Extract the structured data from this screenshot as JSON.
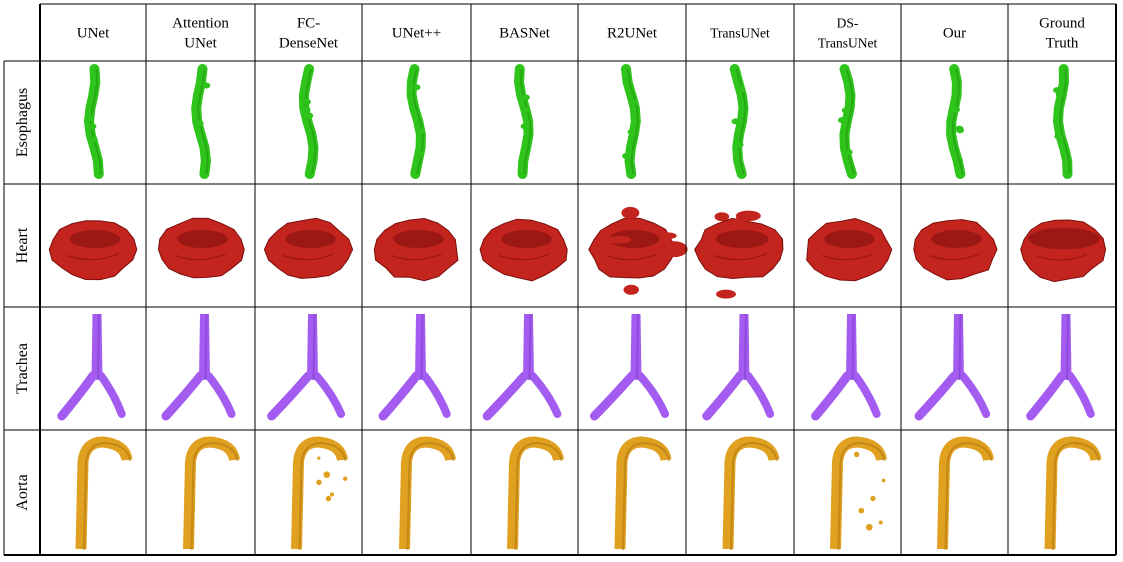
{
  "figure": {
    "columns": [
      [
        "UNet"
      ],
      [
        "Attention",
        "UNet"
      ],
      [
        "FC-",
        "DenseNet"
      ],
      [
        "UNet++"
      ],
      [
        "BASNet"
      ],
      [
        "R2UNet"
      ],
      [
        "TransUNet"
      ],
      [
        "DS-",
        "TransUNet"
      ],
      [
        "Our"
      ],
      [
        "Ground",
        "Truth"
      ]
    ],
    "rows": [
      "Esophagus",
      "Heart",
      "Trachea",
      "Aorta"
    ],
    "colors": {
      "esophagus": "#2fc41c",
      "esophagus_dark": "#1c8a0e",
      "heart": "#c4241e",
      "heart_dark": "#7a0f0c",
      "trachea": "#a45cf0",
      "trachea_dark": "#7838c4",
      "aorta": "#e0a020",
      "aorta_dark": "#a6700c"
    }
  }
}
